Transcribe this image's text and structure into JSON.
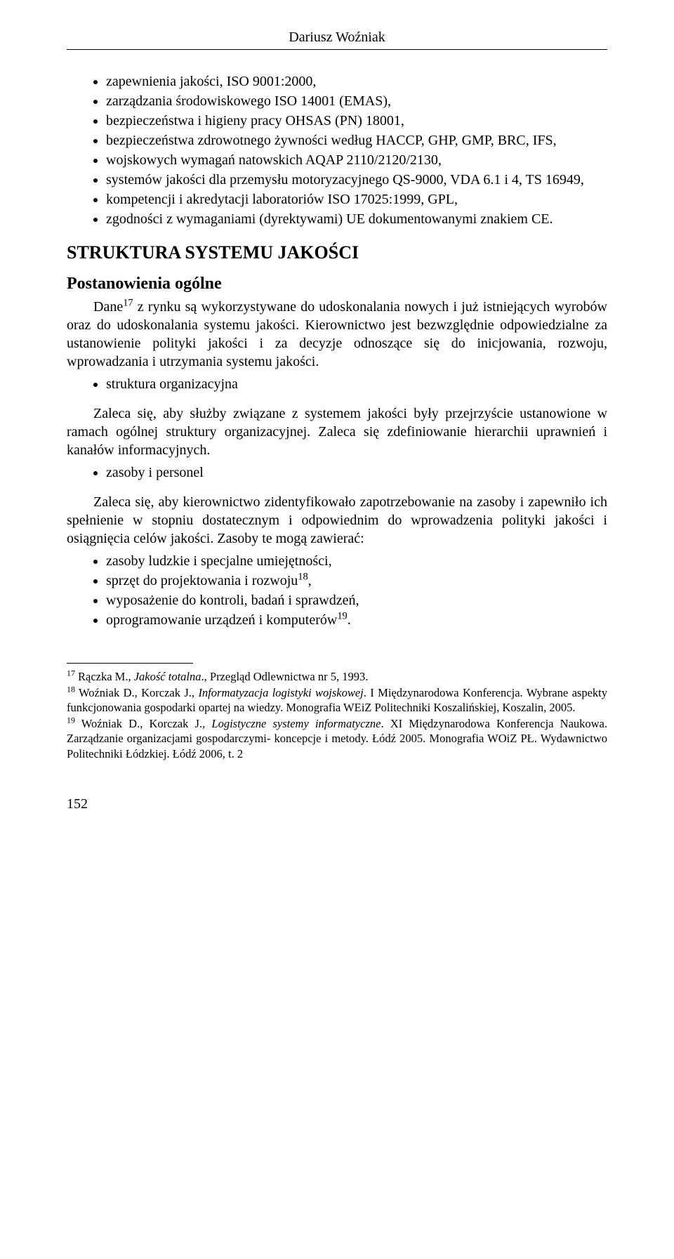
{
  "header": {
    "author": "Dariusz Woźniak"
  },
  "top_list": {
    "items": [
      "zapewnienia jakości, ISO 9001:2000,",
      "zarządzania środowiskowego ISO 14001 (EMAS),",
      "bezpieczeństwa i higieny pracy OHSAS (PN) 18001,",
      "bezpieczeństwa zdrowotnego żywności według HACCP, GHP, GMP, BRC, IFS,",
      "wojskowych wymagań natowskich AQAP 2110/2120/2130,",
      "systemów jakości dla przemysłu motoryzacyjnego QS-9000, VDA 6.1 i 4, TS 16949,",
      "kompetencji i akredytacji laboratoriów ISO 17025:1999, GPL,",
      "zgodności z wymaganiami (dyrektywami) UE dokumentowanymi znakiem CE."
    ]
  },
  "section": {
    "title": "STRUKTURA SYSTEMU JAKOŚCI"
  },
  "subsection": {
    "title": "Postanowienia ogólne"
  },
  "body": {
    "p1_prefix": "Dane",
    "p1_sup": "17",
    "p1_rest": " z rynku są wykorzystywane do udoskonalania nowych i już istniejących wyrobów oraz do udoskonalania systemu jakości. Kierownictwo jest bezwzględnie odpowiedzialne za ustanowienie polityki jakości i za decyzje odnoszące się do inicjowania, rozwoju, wprowadzania i utrzymania systemu jakości.",
    "b1": "struktura organizacyjna",
    "p2": "Zaleca się, aby służby związane z systemem jakości były przejrzyście ustanowione w ramach ogólnej struktury organizacyjnej. Zaleca się zdefiniowanie hierarchii uprawnień i kanałów informacyjnych.",
    "b2": "zasoby i personel",
    "p3": "Zaleca się, aby kierownictwo zidentyfikowało zapotrzebowanie na zasoby i zapewniło ich spełnienie w stopniu dostatecznym i odpowiednim do wprowadzenia polityki jakości i osiągnięcia celów jakości. Zasoby te mogą zawierać:",
    "res1": "zasoby ludzkie i specjalne umiejętności,",
    "res2_prefix": "sprzęt do projektowania i rozwoju",
    "res2_sup": "18",
    "res2_suffix": ",",
    "res3": "wyposażenie do kontroli, badań i sprawdzeń,",
    "res4_prefix": "oprogramowanie urządzeń i komputerów",
    "res4_sup": "19",
    "res4_suffix": "."
  },
  "footnotes": {
    "f17_num": "17",
    "f17_a": " Rączka M., ",
    "f17_i": "Jakość totalna",
    "f17_b": "., Przegląd Odlewnictwa nr 5, 1993.",
    "f18_num": "18",
    "f18_a": " Woźniak D., Korczak J., ",
    "f18_i": "Informatyzacja logistyki wojskowej",
    "f18_b": ". I Międzynarodowa Konferencja. Wybrane aspekty funkcjonowania gospodarki opartej na wiedzy. Monografia WEiZ Politechniki Koszalińskiej, Koszalin, 2005.",
    "f19_num": "19",
    "f19_a": " Woźniak D., Korczak J., ",
    "f19_i": "Logistyczne systemy informatyczne",
    "f19_b": ". XI Międzynarodowa Konferencja Naukowa. Zarządzanie organizacjami gospodarczymi- koncepcje i metody. Łódź 2005. Monografia WOiZ PŁ. Wydawnictwo Politechniki Łódzkiej. Łódź 2006, t. 2"
  },
  "page": {
    "number": "152"
  }
}
